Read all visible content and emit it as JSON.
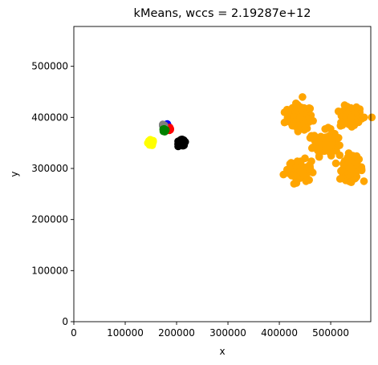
{
  "chart_data": {
    "type": "scatter",
    "title": "kMeans, wccs = 2.19287e+12",
    "xlabel": "x",
    "ylabel": "y",
    "xlim": [
      0,
      578000
    ],
    "ylim": [
      0,
      578000
    ],
    "xticks": [
      0,
      100000,
      200000,
      300000,
      400000,
      500000
    ],
    "yticks": [
      0,
      100000,
      200000,
      300000,
      400000,
      500000
    ],
    "xtick_labels": [
      "0",
      "100000",
      "200000",
      "300000",
      "400000",
      "500000"
    ],
    "ytick_labels": [
      "0",
      "100000",
      "200000",
      "300000",
      "400000",
      "500000"
    ],
    "grid": false,
    "legend": "none",
    "series": [
      {
        "color": "#ffa500",
        "blobs": [
          {
            "cx": 440000,
            "cy": 400000,
            "spread": 22000,
            "count": 80
          },
          {
            "cx": 540000,
            "cy": 400000,
            "spread": 20000,
            "count": 60
          },
          {
            "cx": 490000,
            "cy": 350000,
            "spread": 22000,
            "count": 80
          },
          {
            "cx": 440000,
            "cy": 295000,
            "spread": 20000,
            "count": 60
          },
          {
            "cx": 540000,
            "cy": 300000,
            "spread": 20000,
            "count": 70
          }
        ],
        "points": [
          [
            410000,
            410000
          ],
          [
            410000,
            390000
          ],
          [
            460000,
            395000
          ],
          [
            445000,
            440000
          ],
          [
            580000,
            400000
          ],
          [
            565000,
            400000
          ],
          [
            520000,
            390000
          ],
          [
            550000,
            420000
          ],
          [
            460000,
            360000
          ],
          [
            475000,
            335000
          ],
          [
            515000,
            345000
          ],
          [
            495000,
            380000
          ],
          [
            408000,
            288000
          ],
          [
            420000,
            300000
          ],
          [
            452000,
            275000
          ],
          [
            460000,
            300000
          ],
          [
            510000,
            310000
          ],
          [
            520000,
            295000
          ],
          [
            560000,
            300000
          ],
          [
            540000,
            273000
          ],
          [
            555000,
            318000
          ],
          [
            535000,
            330000
          ]
        ]
      },
      {
        "color": "#ffff00",
        "blobs": [
          {
            "cx": 150000,
            "cy": 350000,
            "spread": 5000,
            "count": 60
          }
        ],
        "points": []
      },
      {
        "color": "#000000",
        "blobs": [
          {
            "cx": 210000,
            "cy": 350000,
            "spread": 5500,
            "count": 80
          }
        ],
        "points": []
      },
      {
        "color": "#0000ff",
        "blobs": [
          {
            "cx": 181000,
            "cy": 384000,
            "spread": 2500,
            "count": 20
          }
        ],
        "points": []
      },
      {
        "color": "#ff0000",
        "blobs": [
          {
            "cx": 186000,
            "cy": 378000,
            "spread": 2500,
            "count": 20
          }
        ],
        "points": []
      },
      {
        "color": "#808080",
        "blobs": [
          {
            "cx": 174000,
            "cy": 384000,
            "spread": 1800,
            "count": 15
          }
        ],
        "points": []
      },
      {
        "color": "#008000",
        "blobs": [
          {
            "cx": 176000,
            "cy": 375000,
            "spread": 2500,
            "count": 25
          }
        ],
        "points": []
      }
    ]
  }
}
